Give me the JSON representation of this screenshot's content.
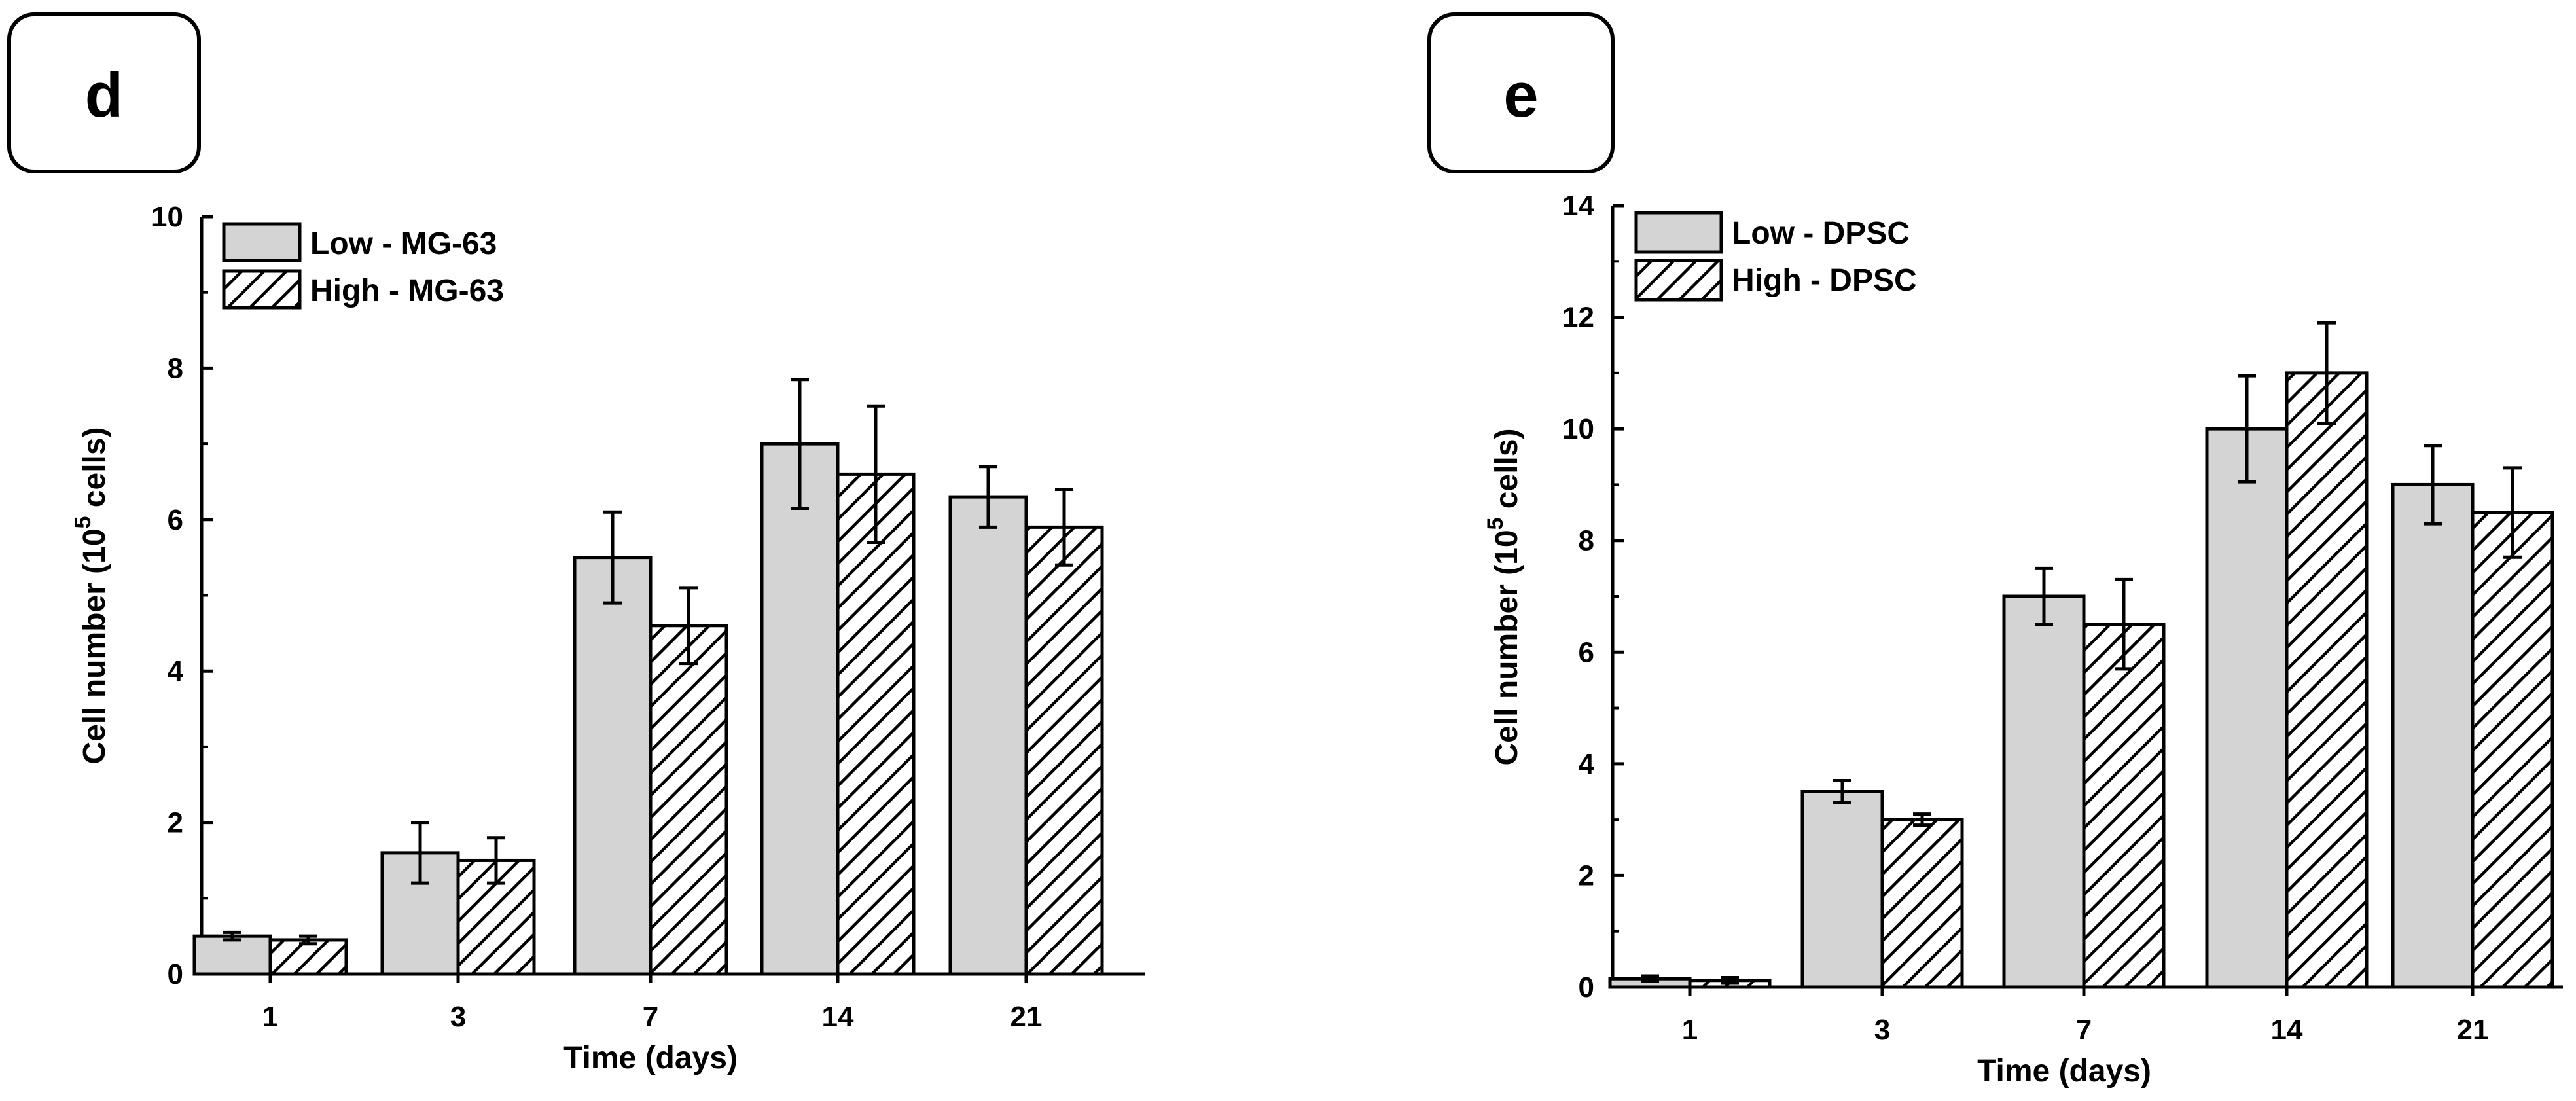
{
  "chart_data": [
    {
      "type": "bar",
      "panel_label": "d",
      "categories": [
        "1",
        "3",
        "7",
        "14",
        "21"
      ],
      "series": [
        {
          "name": "Low - MG-63",
          "pattern": "solid",
          "values": [
            0.5,
            1.6,
            5.5,
            7.0,
            6.3
          ],
          "errors": [
            0.05,
            0.4,
            0.6,
            0.85,
            0.4
          ]
        },
        {
          "name": "High - MG-63",
          "pattern": "hatched",
          "values": [
            0.45,
            1.5,
            4.6,
            6.6,
            5.9
          ],
          "errors": [
            0.05,
            0.3,
            0.5,
            0.9,
            0.5
          ]
        }
      ],
      "xlabel": "Time (days)",
      "ylabel": "Cell number (10",
      "ylabel_sup": "5",
      "ylabel_end": " cells)",
      "ylim": [
        0,
        10
      ],
      "yticks": [
        "0",
        "2",
        "4",
        "6",
        "8",
        "10"
      ],
      "legend_position": "top-left",
      "grid": false
    },
    {
      "type": "bar",
      "panel_label": "e",
      "categories": [
        "1",
        "3",
        "7",
        "14",
        "21"
      ],
      "series": [
        {
          "name": "Low - DPSC",
          "pattern": "solid",
          "values": [
            0.15,
            3.5,
            7.0,
            10.0,
            9.0
          ],
          "errors": [
            0.05,
            0.2,
            0.5,
            0.95,
            0.7
          ]
        },
        {
          "name": "High - DPSC",
          "pattern": "hatched",
          "values": [
            0.12,
            3.0,
            6.5,
            11.0,
            8.5
          ],
          "errors": [
            0.05,
            0.1,
            0.8,
            0.9,
            0.8
          ]
        }
      ],
      "xlabel": "Time (days)",
      "ylabel": "Cell number (10",
      "ylabel_sup": "5",
      "ylabel_end": " cells)",
      "ylim": [
        0,
        14
      ],
      "yticks": [
        "0",
        "2",
        "4",
        "6",
        "8",
        "10",
        "12",
        "14"
      ],
      "legend_position": "top-left",
      "grid": false
    }
  ],
  "colors": {
    "bar_fill": "#d4d4d4",
    "stroke": "#000000"
  }
}
